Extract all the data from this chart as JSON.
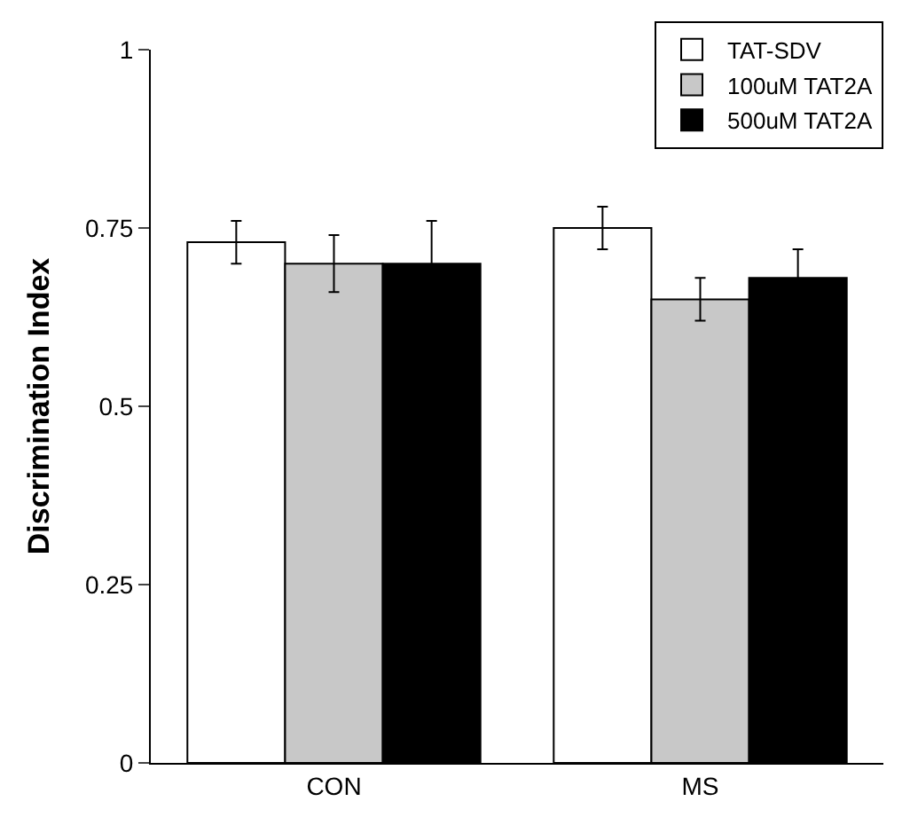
{
  "chart_data": {
    "type": "bar",
    "ylabel": "Discrimination Index",
    "categories": [
      "CON",
      "MS"
    ],
    "series": [
      {
        "name": "TAT-SDV",
        "color": "#ffffff",
        "values": [
          0.73,
          0.75
        ],
        "errors": [
          0.03,
          0.03
        ]
      },
      {
        "name": "100uM TAT2A",
        "color": "#c8c8c8",
        "values": [
          0.7,
          0.65
        ],
        "errors": [
          0.04,
          0.03
        ]
      },
      {
        "name": "500uM TAT2A",
        "color": "#000000",
        "values": [
          0.7,
          0.68
        ],
        "errors": [
          0.06,
          0.04
        ]
      }
    ],
    "ylim": [
      0,
      1
    ],
    "yticks": [
      0,
      0.25,
      0.5,
      0.75,
      1
    ],
    "legend": "top right"
  }
}
